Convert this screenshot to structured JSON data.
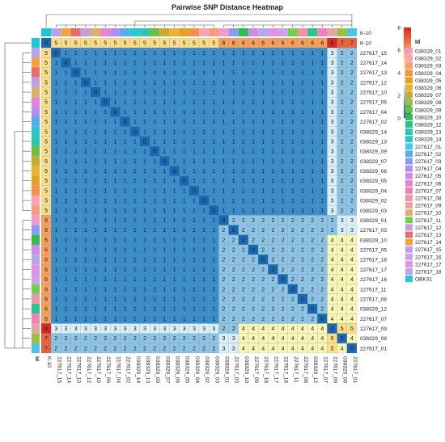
{
  "chart_data": {
    "type": "heatmap",
    "title": "Pairwise SNP Distance Heatmap",
    "labels": [
      "K-10",
      "227617_15",
      "227617_14",
      "227617_13",
      "227617_12",
      "227617_10",
      "227617_06",
      "227617_04",
      "227617_02",
      "038329_14",
      "038329_13",
      "038329_09",
      "038329_07",
      "038329_06",
      "038329_05",
      "038329_04",
      "038329_02",
      "038329_03",
      "038329_01",
      "227617_03",
      "038329_10",
      "227617_05",
      "227617_18",
      "227617_17",
      "227617_16",
      "227617_11",
      "227617_08",
      "038329_12",
      "227617_07",
      "227617_09",
      "038329_08",
      "227617_01"
    ],
    "groups": [
      18,
      11,
      3
    ],
    "matrix_rule": {
      "within_group": [
        0,
        1,
        2,
        0
      ],
      "between_groups": {
        "g1_g2": 1,
        "g1_g3": 3,
        "g2_g3": 4,
        "g3_last": 2
      },
      "k10_row": [
        0,
        5,
        6,
        8,
        7
      ]
    },
    "colorbar": {
      "ticks": [
        "8",
        "6",
        "4",
        "2",
        "0"
      ],
      "min": 0,
      "max": 8
    },
    "legend_title": "Id",
    "legend_items": [
      {
        "label": "038329_01",
        "color": "#f59ac8"
      },
      {
        "label": "038329_02",
        "color": "#f9a3b5"
      },
      {
        "label": "038329_03",
        "color": "#fb9a76"
      },
      {
        "label": "038329_04",
        "color": "#f78f48"
      },
      {
        "label": "038329_05",
        "color": "#e3a21e"
      },
      {
        "label": "038329_06",
        "color": "#e7b42c"
      },
      {
        "label": "038329_07",
        "color": "#caa92d"
      },
      {
        "label": "038329_08",
        "color": "#9fc03a"
      },
      {
        "label": "038329_09",
        "color": "#6cc23f"
      },
      {
        "label": "038329_10",
        "color": "#2ebc4a"
      },
      {
        "label": "038329_12",
        "color": "#29c48e"
      },
      {
        "label": "038329_13",
        "color": "#2ac7b3"
      },
      {
        "label": "038329_14",
        "color": "#27c9cf"
      },
      {
        "label": "227617_01",
        "color": "#48c6e6"
      },
      {
        "label": "227617_02",
        "color": "#52aef0"
      },
      {
        "label": "227617_03",
        "color": "#8a9bf3"
      },
      {
        "label": "227617_04",
        "color": "#b18ef0"
      },
      {
        "label": "227617_05",
        "color": "#d08ae8"
      },
      {
        "label": "227617_06",
        "color": "#e882d5"
      },
      {
        "label": "227617_07",
        "color": "#f27fb8"
      },
      {
        "label": "227617_08",
        "color": "#f591a6"
      },
      {
        "label": "227617_09",
        "color": "#e8a5a0"
      },
      {
        "label": "227617_10",
        "color": "#d9b268"
      },
      {
        "label": "227617_11",
        "color": "#6fd04e"
      },
      {
        "label": "227617_12",
        "color": "#c69be0"
      },
      {
        "label": "227617_13",
        "color": "#ee6a6a"
      },
      {
        "label": "227617_14",
        "color": "#f4a23a"
      },
      {
        "label": "227617_15",
        "color": "#b7a3ef"
      },
      {
        "label": "227617_16",
        "color": "#cfa0ee"
      },
      {
        "label": "227617_17",
        "color": "#e390e6"
      },
      {
        "label": "227617_18",
        "color": "#b1a8f2"
      },
      {
        "label": "OBK31",
        "color": "#27c7d6"
      }
    ],
    "id_color_strip_colors": [
      "#1fc6d5",
      "#b7a3ef",
      "#f4a23a",
      "#ee6a6a",
      "#c69be0",
      "#d9b268",
      "#e882d5",
      "#b18ef0",
      "#52aef0",
      "#27c9cf",
      "#2ac7b3",
      "#6cc23f",
      "#caa92d",
      "#e7b42c",
      "#e3a21e",
      "#f78f48",
      "#f9a3b5",
      "#fb9a76",
      "#f59ac8",
      "#8a9bf3",
      "#2ebc4a",
      "#d08ae8",
      "#b1a8f2",
      "#e390e6",
      "#cfa0ee",
      "#6fd04e",
      "#f591a6",
      "#29c48e",
      "#f27fb8",
      "#e8a5a0",
      "#9fc03a",
      "#48c6e6"
    ],
    "strip_label": "Id"
  }
}
